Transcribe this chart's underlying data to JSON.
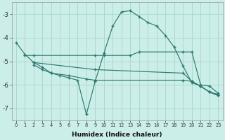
{
  "xlabel": "Humidex (Indice chaleur)",
  "background_color": "#cceee8",
  "grid_color": "#aad8d0",
  "line_color": "#2d7a70",
  "xlim": [
    -0.5,
    23.5
  ],
  "ylim": [
    -7.5,
    -2.5
  ],
  "yticks": [
    -7,
    -6,
    -5,
    -4,
    -3
  ],
  "xticks": [
    0,
    1,
    2,
    3,
    4,
    5,
    6,
    7,
    8,
    9,
    10,
    11,
    12,
    13,
    14,
    15,
    16,
    17,
    18,
    19,
    20,
    21,
    22,
    23
  ],
  "series": [
    {
      "x": [
        0,
        1,
        2,
        3,
        4,
        5,
        6,
        7,
        8,
        9,
        10,
        11,
        12,
        13,
        14,
        15,
        16,
        17,
        18,
        19,
        20,
        21,
        22,
        23
      ],
      "y": [
        -4.2,
        -4.7,
        -5.05,
        -5.25,
        -5.5,
        -5.6,
        -5.7,
        -5.8,
        -7.25,
        -5.85,
        -4.65,
        -3.5,
        -2.9,
        -2.85,
        -3.1,
        -3.35,
        -3.5,
        -3.9,
        -4.4,
        -5.2,
        -5.9,
        -6.05,
        -6.3,
        -6.4
      ]
    },
    {
      "x": [
        1,
        2,
        9,
        10,
        13,
        14,
        19,
        20,
        21,
        22,
        23
      ],
      "y": [
        -4.75,
        -4.75,
        -4.75,
        -4.75,
        -4.75,
        -4.6,
        -4.6,
        -4.6,
        -6.0,
        -6.05,
        -6.35
      ]
    },
    {
      "x": [
        2,
        9,
        19,
        20,
        21,
        22,
        23
      ],
      "y": [
        -5.05,
        -5.35,
        -5.5,
        -5.85,
        -6.05,
        -6.3,
        -6.45
      ]
    },
    {
      "x": [
        2,
        3,
        4,
        6,
        8,
        9,
        19,
        20,
        21,
        22,
        23
      ],
      "y": [
        -5.15,
        -5.35,
        -5.5,
        -5.6,
        -5.75,
        -5.8,
        -5.8,
        -5.85,
        -6.05,
        -6.3,
        -6.45
      ]
    }
  ]
}
